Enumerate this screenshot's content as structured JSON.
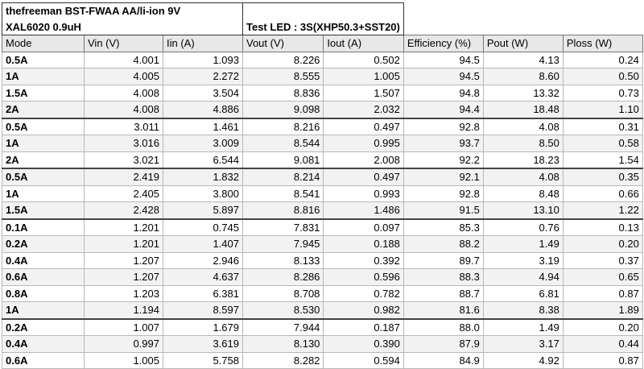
{
  "header": {
    "title": "thefreeman BST-FWAA AA/li-ion 9V",
    "subtitle": "XAL6020 0.9uH",
    "test_led": "Test LED : 3S(XHP50.3+SST20)"
  },
  "table": {
    "columns": [
      "Mode",
      "Vin (V)",
      "Iin (A)",
      "Vout (V)",
      "Iout (A)",
      "Efficiency (%)",
      "Pout (W)",
      "Ploss (W)"
    ],
    "groups": [
      [
        [
          "0.5A",
          "4.001",
          "1.093",
          "8.226",
          "0.502",
          "94.5",
          "4.13",
          "0.24"
        ],
        [
          "1A",
          "4.005",
          "2.272",
          "8.555",
          "1.005",
          "94.5",
          "8.60",
          "0.50"
        ],
        [
          "1.5A",
          "4.008",
          "3.504",
          "8.836",
          "1.507",
          "94.8",
          "13.32",
          "0.73"
        ],
        [
          "2A",
          "4.008",
          "4.886",
          "9.098",
          "2.032",
          "94.4",
          "18.48",
          "1.10"
        ]
      ],
      [
        [
          "0.5A",
          "3.011",
          "1.461",
          "8.216",
          "0.497",
          "92.8",
          "4.08",
          "0.31"
        ],
        [
          "1A",
          "3.016",
          "3.009",
          "8.544",
          "0.995",
          "93.7",
          "8.50",
          "0.58"
        ],
        [
          "2A",
          "3.021",
          "6.544",
          "9.081",
          "2.008",
          "92.2",
          "18.23",
          "1.54"
        ]
      ],
      [
        [
          "0.5A",
          "2.419",
          "1.832",
          "8.214",
          "0.497",
          "92.1",
          "4.08",
          "0.35"
        ],
        [
          "1A",
          "2.405",
          "3.800",
          "8.541",
          "0.993",
          "92.8",
          "8.48",
          "0.66"
        ],
        [
          "1.5A",
          "2.428",
          "5.897",
          "8.816",
          "1.486",
          "91.5",
          "13.10",
          "1.22"
        ]
      ],
      [
        [
          "0.1A",
          "1.201",
          "0.745",
          "7.831",
          "0.097",
          "85.3",
          "0.76",
          "0.13"
        ],
        [
          "0.2A",
          "1.201",
          "1.407",
          "7.945",
          "0.188",
          "88.2",
          "1.49",
          "0.20"
        ],
        [
          "0.4A",
          "1.207",
          "2.946",
          "8.133",
          "0.392",
          "89.7",
          "3.19",
          "0.37"
        ],
        [
          "0.6A",
          "1.207",
          "4.637",
          "8.286",
          "0.596",
          "88.3",
          "4.94",
          "0.65"
        ],
        [
          "0.8A",
          "1.203",
          "6.381",
          "8.708",
          "0.782",
          "88.7",
          "6.81",
          "0.87"
        ],
        [
          "1A",
          "1.194",
          "8.597",
          "8.530",
          "0.982",
          "81.6",
          "8.38",
          "1.89"
        ]
      ],
      [
        [
          "0.2A",
          "1.007",
          "1.679",
          "7.944",
          "0.187",
          "88.0",
          "1.49",
          "0.20"
        ],
        [
          "0.4A",
          "0.997",
          "3.619",
          "8.130",
          "0.390",
          "87.9",
          "3.17",
          "0.44"
        ],
        [
          "0.6A",
          "1.005",
          "5.758",
          "8.282",
          "0.594",
          "84.9",
          "4.92",
          "0.87"
        ]
      ]
    ]
  }
}
